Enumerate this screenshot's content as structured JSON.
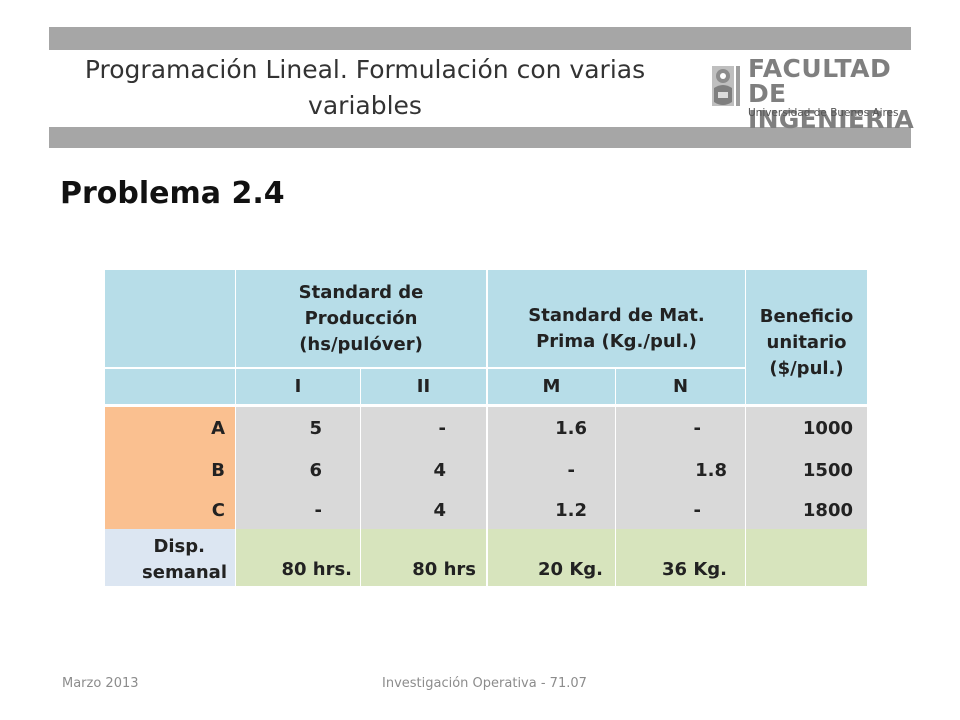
{
  "header": {
    "title_line1": "Programación Lineal. Formulación con varias",
    "title_line2": "variables",
    "logo": {
      "line1": "FACULTAD",
      "line2": "DE INGENIERIA",
      "line3": "Universidad de Buenos Aires"
    }
  },
  "problem": {
    "heading": "Problema 2.4"
  },
  "table": {
    "group_headers": {
      "production": [
        "Standard de",
        "Producción",
        "(hs/pulóver)"
      ],
      "material": [
        "Standard de Mat.",
        "Prima (Kg./pul.)"
      ],
      "profit": [
        "Beneficio",
        "unitario",
        "($/pul.)"
      ]
    },
    "sub_headers": [
      "I",
      "II",
      "M",
      "N"
    ],
    "rows": [
      {
        "label": "A",
        "values": [
          "5",
          "-",
          "1.6",
          "-"
        ],
        "profit": "1000"
      },
      {
        "label": "B",
        "values": [
          "6",
          "4",
          "-",
          "1.8"
        ],
        "profit": "1500"
      },
      {
        "label": "C",
        "values": [
          "-",
          "4",
          "1.2",
          "-"
        ],
        "profit": "1800"
      }
    ],
    "availability": {
      "label_line1": "Disp.",
      "label_line2": "semanal",
      "values": [
        "80 hrs.",
        "80 hrs",
        "20 Kg.",
        "36 Kg."
      ]
    }
  },
  "footer": {
    "date": "Marzo 2013",
    "course": "Investigación Operativa - 71.07"
  },
  "colors": {
    "header_bg": "#b7dde8",
    "row_label_bg": "#fac090",
    "data_bg": "#d9d9d9",
    "availability_bg": "#d7e4bd",
    "availability_label_bg": "#dce6f2",
    "bar_gray": "#a6a6a6"
  }
}
